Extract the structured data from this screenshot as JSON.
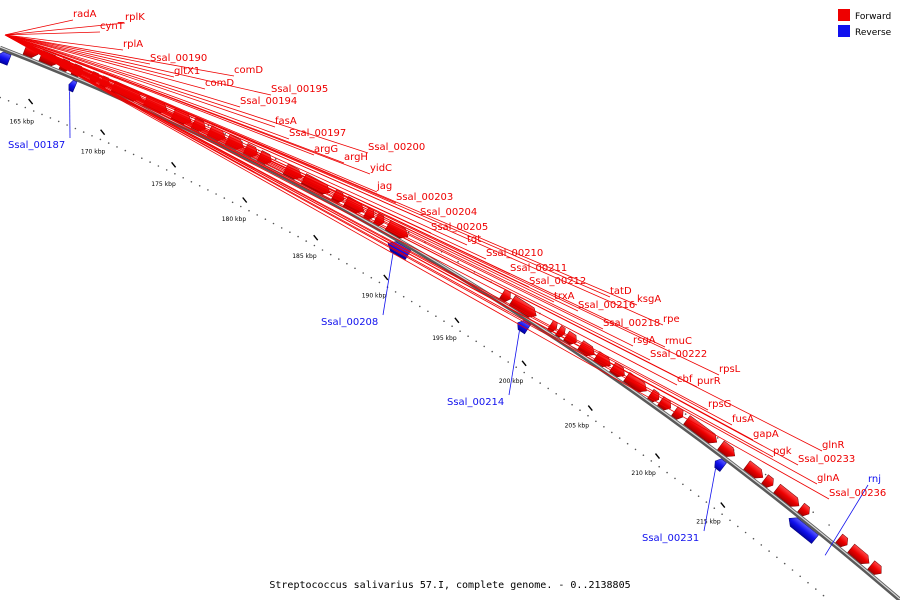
{
  "caption": "Streptococcus salivarius 57.I, complete genome. - 0..2138805",
  "legend": [
    {
      "label": "Forward",
      "color": "#ee0000"
    },
    {
      "label": "Reverse",
      "color": "#1111ee"
    }
  ],
  "ticks": [
    "165 kbp",
    "170 kbp",
    "175 kbp",
    "180 kbp",
    "185 kbp",
    "190 kbp",
    "195 kbp",
    "200 kbp",
    "205 kbp",
    "210 kbp",
    "215 kbp"
  ],
  "forward_labels": [
    "radA",
    "cynT",
    "rplK",
    "rplA",
    "Ssal_00190",
    "gltX1",
    "comD",
    "comD",
    "Ssal_00195",
    "Ssal_00194",
    "fasA",
    "Ssal_00197",
    "argG",
    "Ssal_00200",
    "argH",
    "yidC",
    "jag",
    "Ssal_00203",
    "Ssal_00204",
    "Ssal_00205",
    "tgt",
    "Ssal_00210",
    "Ssal_00211",
    "Ssal_00212",
    "trxA",
    "tatD",
    "Ssal_00216",
    "ksgA",
    "Ssal_00218",
    "rpe",
    "rsgA",
    "rmuC",
    "Ssal_00222",
    "cbf",
    "rpsL",
    "purR",
    "rpsG",
    "fusA",
    "gapA",
    "pgk",
    "glnR",
    "Ssal_00233",
    "glnA",
    "Ssal_00236"
  ],
  "reverse_labels": [
    "Ssal_00187",
    "Ssal_00208",
    "Ssal_00214",
    "Ssal_00231",
    "rnj"
  ]
}
